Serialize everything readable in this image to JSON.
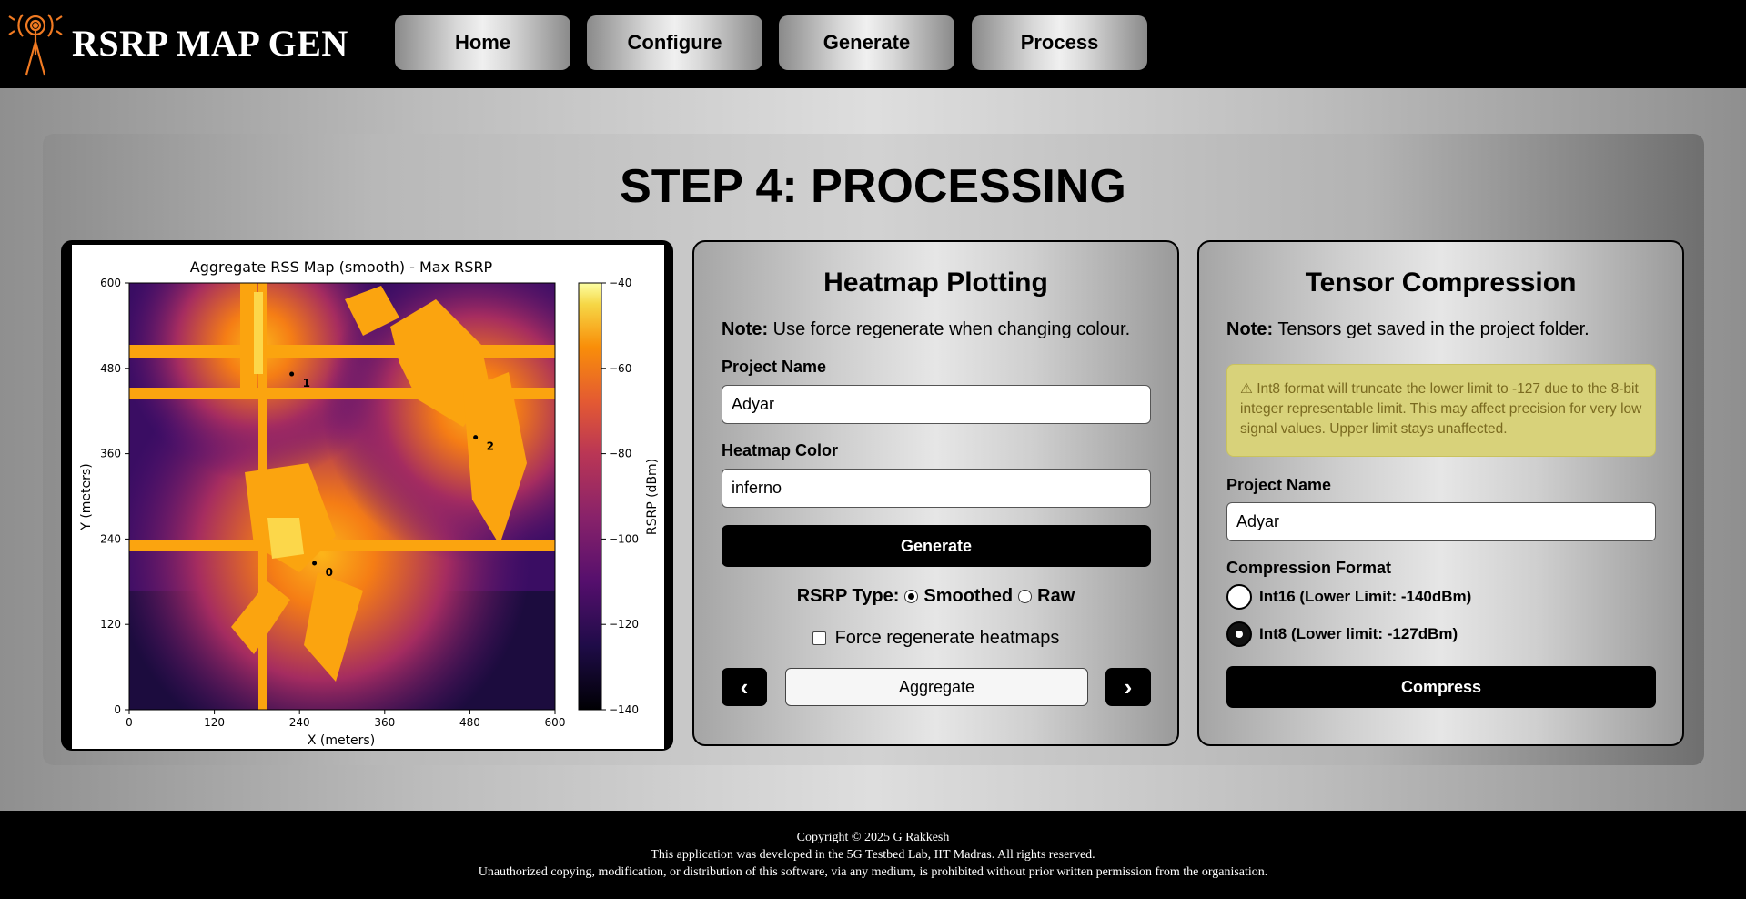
{
  "header": {
    "brand": "RSRP MAP GEN",
    "nav": [
      "Home",
      "Configure",
      "Generate",
      "Process"
    ],
    "colors": {
      "background": "#000000",
      "logo_accent": "#f07a22"
    }
  },
  "main": {
    "step_title": "STEP 4: PROCESSING"
  },
  "heatmap_panel": {
    "title": "Heatmap Plotting",
    "note_label": "Note:",
    "note_text": "Use force regenerate when changing colour.",
    "project_label": "Project Name",
    "project_value": "Adyar",
    "color_label": "Heatmap Color",
    "color_value": "inferno",
    "generate_label": "Generate",
    "rsrp_type_label": "RSRP Type:",
    "rsrp_options": [
      "Smoothed",
      "Raw"
    ],
    "rsrp_selected": "Smoothed",
    "force_label": "Force regenerate heatmaps",
    "force_checked": false,
    "prev_label": "‹",
    "next_label": "›",
    "aggregate_value": "Aggregate"
  },
  "tensor_panel": {
    "title": "Tensor Compression",
    "note_label": "Note:",
    "note_text": "Tensors get saved in the project folder.",
    "warning": "⚠ Int8 format will truncate the lower limit to -127 due to the 8-bit integer representable limit. This may affect precision for very low signal values. Upper limit stays unaffected.",
    "project_label": "Project Name",
    "project_value": "Adyar",
    "format_label": "Compression Format",
    "format_options": [
      "Int16 (Lower Limit: -140dBm)",
      "Int8 (Lower limit: -127dBm)"
    ],
    "format_selected": "Int8 (Lower limit: -127dBm)",
    "compress_label": "Compress"
  },
  "chart_data": {
    "type": "heatmap",
    "title": "Aggregate RSS Map (smooth) - Max RSRP",
    "xlabel": "X (meters)",
    "ylabel": "Y (meters)",
    "xlim": [
      0,
      600
    ],
    "ylim": [
      0,
      600
    ],
    "x_ticks": [
      "0",
      "120",
      "240",
      "360",
      "480",
      "600"
    ],
    "y_ticks": [
      "0",
      "120",
      "240",
      "360",
      "480",
      "600"
    ],
    "colormap": "inferno",
    "colorbar_label": "RSRP (dBm)",
    "colorbar_range": [
      -140,
      -40
    ],
    "colorbar_ticks": [
      "−40",
      "−60",
      "−80",
      "−100",
      "−120",
      "−140"
    ],
    "transmitters": [
      {
        "label": "0",
        "x": 261,
        "y": 206
      },
      {
        "label": "1",
        "x": 229,
        "y": 472
      },
      {
        "label": "2",
        "x": 488,
        "y": 383
      }
    ]
  },
  "footer": {
    "line1": "Copyright © 2025 G Rakkesh",
    "line2": "This application was developed in the 5G Testbed Lab, IIT Madras. All rights reserved.",
    "line3": "Unauthorized copying, modification, or distribution of this software, via any medium, is prohibited without prior written permission from the organisation."
  }
}
